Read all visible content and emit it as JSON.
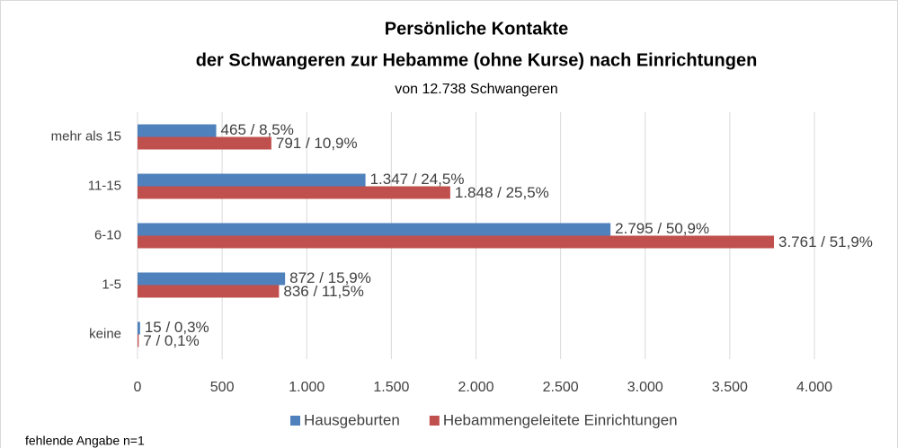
{
  "chart_data": {
    "type": "hbar",
    "title": [
      "Persönliche Kontakte",
      "der Schwangeren zur Hebamme (ohne Kurse) nach Einrichtungen"
    ],
    "subtitle": "von 12.738 Schwangeren",
    "categories": [
      "mehr als 15",
      "11-15",
      "6-10",
      "1-5",
      "keine"
    ],
    "series": [
      {
        "name": "Hausgeburten",
        "color": "#4f81bd",
        "values": [
          465,
          1347,
          2795,
          872,
          15
        ],
        "value_labels": [
          "465 / 8,5%",
          "1.347 / 24,5%",
          "2.795 / 50,9%",
          "872 / 15,9%",
          "15 / 0,3%"
        ]
      },
      {
        "name": "Hebammengeleitete Einrichtungen",
        "color": "#c0504d",
        "values": [
          791,
          1848,
          3761,
          836,
          7
        ],
        "value_labels": [
          "791 / 10,9%",
          "1.848 / 25,5%",
          "3.761 / 51,9%",
          "836 / 11,5%",
          "7 / 0,1%"
        ]
      }
    ],
    "xlim": [
      0,
      4000
    ],
    "xticks": [
      0,
      500,
      {
        "value": 1000,
        "label": "1.000"
      },
      {
        "value": 1500,
        "label": "1.500"
      },
      {
        "value": 2000,
        "label": "2.000"
      },
      {
        "value": 2500,
        "label": "2.500"
      },
      {
        "value": 3000,
        "label": "3.000"
      },
      {
        "value": 3500,
        "label": "3.500"
      },
      {
        "value": 4000,
        "label": "4.000"
      }
    ],
    "grid": true,
    "legend": "bottom",
    "footnote": "fehlende Angabe n=1"
  }
}
